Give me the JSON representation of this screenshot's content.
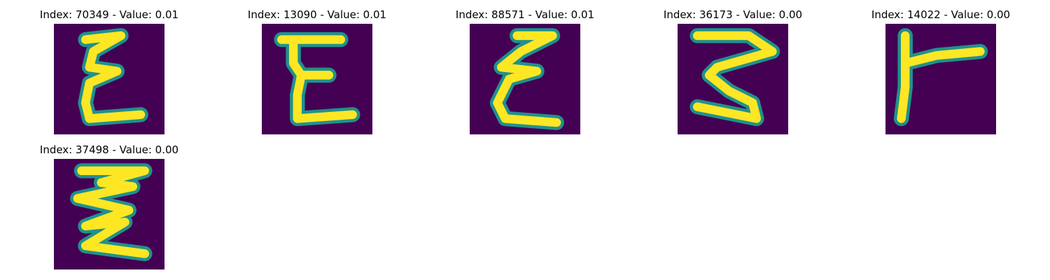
{
  "colors": {
    "background": "#440154",
    "stroke_mid": "#21918c",
    "stroke_core": "#fde725"
  },
  "panels": [
    {
      "title": "Index: 70349 - Value: 0.01",
      "glyph": "E-like zigzag handwritten character"
    },
    {
      "title": "Index: 13090 - Value: 0.01",
      "glyph": "E-like handwritten character"
    },
    {
      "title": "Index: 88571 - Value: 0.01",
      "glyph": "E-like zigzag handwritten character"
    },
    {
      "title": "Index: 36173 - Value: 0.00",
      "glyph": "Z-like zigzag handwritten character"
    },
    {
      "title": "Index: 14022 - Value: 0.00",
      "glyph": "r-like handwritten character"
    },
    {
      "title": "Index: 37498 - Value: 0.00",
      "glyph": "zigzag handwritten character"
    }
  ]
}
